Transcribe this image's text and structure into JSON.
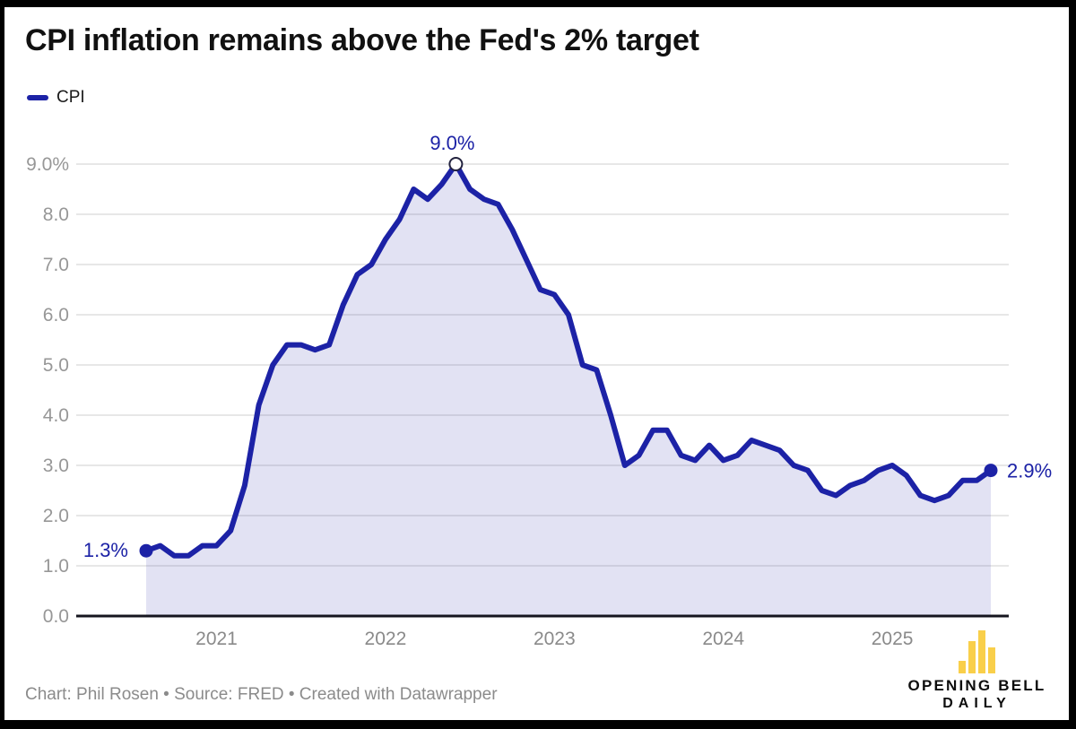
{
  "title": "CPI inflation remains above the Fed's 2% target",
  "legend": {
    "items": [
      {
        "label": "CPI",
        "color": "#1c22a6"
      }
    ]
  },
  "footer": "Chart: Phil Rosen • Source: FRED • Created with Datawrapper",
  "logo": {
    "line1": "OPENING BELL",
    "line2": "DAILY",
    "bar_color": "#f9cf4a",
    "icon": "bar-chart-logo-icon"
  },
  "colors": {
    "accent": "#1c22a6",
    "area_fill": "#1c22a6",
    "area_fill_opacity": 0.13,
    "gridline": "#e7e7e7",
    "axis_line": "#15151e",
    "tick_label": "#979797",
    "title_text": "#111111",
    "footer_text": "#8b8b8b",
    "logo_yellow": "#f9cf4a"
  },
  "chart_data": {
    "type": "area",
    "title": "CPI inflation remains above the Fed's 2% target",
    "xlabel": "",
    "ylabel": "",
    "ylim": [
      0,
      9
    ],
    "grid": "horizontal",
    "legend_position": "top-left",
    "y_tick_labels": [
      "0.0",
      "1.0",
      "2.0",
      "3.0",
      "4.0",
      "5.0",
      "6.0",
      "7.0",
      "8.0",
      "9.0%"
    ],
    "x_tick_labels": [
      "2021",
      "2022",
      "2023",
      "2024",
      "2025"
    ],
    "series": [
      {
        "name": "CPI",
        "x": [
          "2020-08",
          "2020-09",
          "2020-10",
          "2020-11",
          "2020-12",
          "2021-01",
          "2021-02",
          "2021-03",
          "2021-04",
          "2021-05",
          "2021-06",
          "2021-07",
          "2021-08",
          "2021-09",
          "2021-10",
          "2021-11",
          "2021-12",
          "2022-01",
          "2022-02",
          "2022-03",
          "2022-04",
          "2022-05",
          "2022-06",
          "2022-07",
          "2022-08",
          "2022-09",
          "2022-10",
          "2022-11",
          "2022-12",
          "2023-01",
          "2023-02",
          "2023-03",
          "2023-04",
          "2023-05",
          "2023-06",
          "2023-07",
          "2023-08",
          "2023-09",
          "2023-10",
          "2023-11",
          "2023-12",
          "2024-01",
          "2024-02",
          "2024-03",
          "2024-04",
          "2024-05",
          "2024-06",
          "2024-07",
          "2024-08",
          "2024-09",
          "2024-10",
          "2024-11",
          "2024-12",
          "2025-01",
          "2025-02",
          "2025-03",
          "2025-04",
          "2025-05",
          "2025-06",
          "2025-07",
          "2025-08"
        ],
        "values": [
          1.3,
          1.4,
          1.2,
          1.2,
          1.4,
          1.4,
          1.7,
          2.6,
          4.2,
          5.0,
          5.4,
          5.4,
          5.3,
          5.4,
          6.2,
          6.8,
          7.0,
          7.5,
          7.9,
          8.5,
          8.3,
          8.6,
          9.0,
          8.5,
          8.3,
          8.2,
          7.7,
          7.1,
          6.5,
          6.4,
          6.0,
          5.0,
          4.9,
          4.0,
          3.0,
          3.2,
          3.7,
          3.7,
          3.2,
          3.1,
          3.4,
          3.1,
          3.2,
          3.5,
          3.4,
          3.3,
          3.0,
          2.9,
          2.5,
          2.4,
          2.6,
          2.7,
          2.9,
          3.0,
          2.8,
          2.4,
          2.3,
          2.4,
          2.7,
          2.7,
          2.9
        ]
      }
    ],
    "annotations": [
      {
        "x": "2020-08",
        "label": "1.3%",
        "placement": "left",
        "marker": "dot"
      },
      {
        "x": "2022-06",
        "label": "9.0%",
        "placement": "top",
        "marker": "circle-open"
      },
      {
        "x": "2025-08",
        "label": "2.9%",
        "placement": "right",
        "marker": "dot"
      }
    ]
  }
}
